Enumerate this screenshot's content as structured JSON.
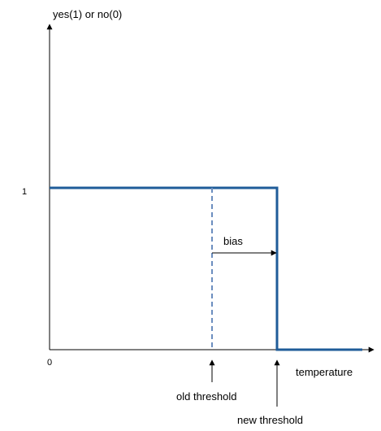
{
  "labels": {
    "y_axis": "yes(1) or no(0)",
    "x_axis": "temperature",
    "y_tick_one": "1",
    "origin": "0",
    "bias": "bias",
    "old_threshold": "old threshold",
    "new_threshold": "new threshold"
  },
  "colors": {
    "axis": "#000000",
    "step": "#1f5c99",
    "old_threshold_line": "#6c8ebf",
    "background": "#ffffff"
  }
}
